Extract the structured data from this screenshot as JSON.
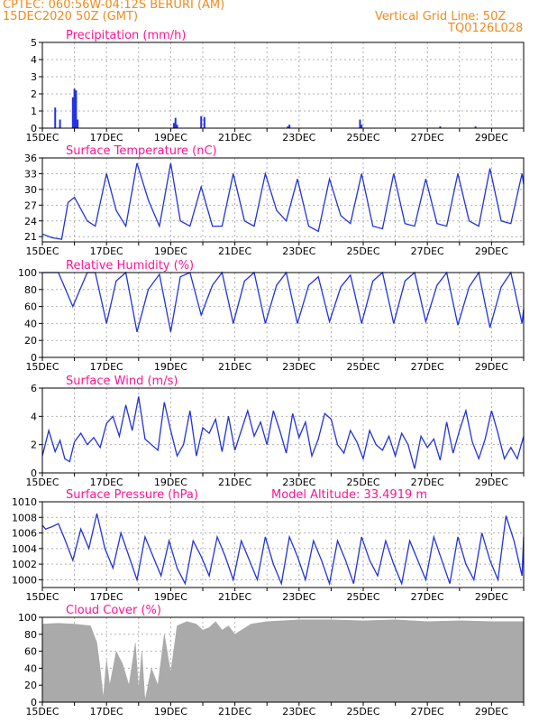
{
  "header": {
    "line1": "CPTEC:   060:56W-04:12S   BERURI (AM)",
    "line2": "15DEC2020 50Z (GMT)",
    "grid_note": "Vertical Grid Line: 50Z",
    "code": "TQ0126L028",
    "color": "#f08a1c"
  },
  "colors": {
    "title": "#ff1493",
    "line": "#2233dd",
    "cloud": "#aaaaaa",
    "grid": "#b0b0b0"
  },
  "chart_data": [
    {
      "type": "bar",
      "title": "Precipitation (mm/h)",
      "xlabel": "",
      "ylabel": "",
      "x_ticks": [
        "15DEC",
        "17DEC",
        "19DEC",
        "21DEC",
        "23DEC",
        "25DEC",
        "27DEC",
        "29DEC"
      ],
      "ylim": [
        0,
        5
      ],
      "yticks": [
        0,
        1,
        2,
        3,
        4,
        5
      ],
      "grid": true,
      "x_unit": "days since 15DEC 00Z",
      "series": [
        {
          "x": [
            0.4,
            0.55,
            0.95,
            1.0,
            1.05,
            1.1,
            4.1,
            4.15,
            4.2,
            4.95,
            5.05,
            7.65,
            7.7,
            9.9,
            9.95,
            12.4,
            13.5
          ],
          "values": [
            1.2,
            0.5,
            1.8,
            2.3,
            2.2,
            0.5,
            0.3,
            0.6,
            0.2,
            0.7,
            0.65,
            0.1,
            0.2,
            0.5,
            0.2,
            0.1,
            0.1
          ]
        }
      ]
    },
    {
      "type": "line",
      "title": "Surface Temperature (nC)",
      "xlabel": "",
      "ylabel": "",
      "x_ticks": [
        "15DEC",
        "17DEC",
        "19DEC",
        "21DEC",
        "23DEC",
        "25DEC",
        "27DEC",
        "29DEC"
      ],
      "ylim": [
        20,
        36
      ],
      "yticks": [
        21,
        24,
        27,
        30,
        33,
        36
      ],
      "grid": true,
      "x_unit": "days since 15DEC 00Z",
      "series": [
        {
          "x": [
            0,
            0.3,
            0.6,
            0.8,
            1.0,
            1.4,
            1.65,
            2.0,
            2.3,
            2.6,
            2.95,
            3.3,
            3.65,
            4.0,
            4.3,
            4.6,
            4.95,
            5.3,
            5.6,
            5.95,
            6.3,
            6.6,
            6.95,
            7.3,
            7.6,
            7.95,
            8.3,
            8.6,
            8.95,
            9.3,
            9.6,
            9.95,
            10.3,
            10.6,
            10.95,
            11.3,
            11.6,
            11.95,
            12.3,
            12.6,
            12.95,
            13.3,
            13.6,
            13.95,
            14.3,
            14.6,
            14.95,
            15.0
          ],
          "values": [
            21.5,
            20.8,
            20.5,
            27.5,
            28.5,
            24,
            23,
            33,
            26,
            23,
            35,
            28,
            23,
            35,
            24,
            23,
            30.5,
            23,
            23,
            33,
            24,
            23,
            33,
            26,
            24,
            32,
            23,
            22,
            32,
            25,
            23.5,
            33,
            23,
            22.5,
            33,
            23.5,
            23,
            32,
            23.5,
            23,
            33,
            24,
            23,
            34,
            24,
            23.5,
            33,
            31
          ]
        }
      ]
    },
    {
      "type": "line",
      "title": "Relative Humidity (%)",
      "xlabel": "",
      "ylabel": "",
      "x_ticks": [
        "15DEC",
        "17DEC",
        "19DEC",
        "21DEC",
        "23DEC",
        "25DEC",
        "27DEC",
        "29DEC"
      ],
      "ylim": [
        0,
        100
      ],
      "yticks": [
        0,
        20,
        40,
        60,
        80,
        100
      ],
      "grid": true,
      "x_unit": "days since 15DEC 00Z",
      "series": [
        {
          "x": [
            0,
            0.5,
            0.95,
            1.4,
            1.65,
            2.0,
            2.3,
            2.6,
            2.95,
            3.3,
            3.65,
            4.0,
            4.3,
            4.6,
            4.95,
            5.3,
            5.6,
            5.95,
            6.3,
            6.6,
            6.95,
            7.3,
            7.6,
            7.95,
            8.3,
            8.6,
            8.95,
            9.3,
            9.6,
            9.95,
            10.3,
            10.6,
            10.95,
            11.3,
            11.6,
            11.95,
            12.3,
            12.6,
            12.95,
            13.3,
            13.6,
            13.95,
            14.3,
            14.6,
            14.95,
            15.0
          ],
          "values": [
            100,
            100,
            60,
            100,
            100,
            40,
            90,
            100,
            30,
            80,
            98,
            30,
            95,
            100,
            50,
            85,
            100,
            40,
            90,
            100,
            40,
            85,
            100,
            40,
            85,
            95,
            42,
            83,
            97,
            40,
            90,
            100,
            40,
            90,
            100,
            42,
            85,
            100,
            38,
            83,
            100,
            35,
            83,
            100,
            40,
            57
          ]
        }
      ]
    },
    {
      "type": "line",
      "title": "Surface Wind (m/s)",
      "xlabel": "",
      "ylabel": "",
      "x_ticks": [
        "15DEC",
        "17DEC",
        "19DEC",
        "21DEC",
        "23DEC",
        "25DEC",
        "27DEC",
        "29DEC"
      ],
      "ylim": [
        0,
        6
      ],
      "yticks": [
        0,
        2,
        4,
        6
      ],
      "grid": true,
      "x_unit": "days since 15DEC 00Z",
      "series": [
        {
          "x": [
            0,
            0.2,
            0.4,
            0.55,
            0.7,
            0.85,
            1.0,
            1.2,
            1.4,
            1.6,
            1.8,
            2.0,
            2.2,
            2.4,
            2.6,
            2.8,
            3.0,
            3.2,
            3.4,
            3.6,
            3.8,
            4.0,
            4.2,
            4.4,
            4.6,
            4.8,
            5.0,
            5.2,
            5.4,
            5.6,
            5.8,
            6.0,
            6.2,
            6.4,
            6.6,
            6.8,
            7.0,
            7.2,
            7.4,
            7.6,
            7.8,
            8.0,
            8.2,
            8.4,
            8.6,
            8.8,
            9.0,
            9.2,
            9.4,
            9.6,
            9.8,
            10.0,
            10.2,
            10.4,
            10.6,
            10.8,
            11.0,
            11.2,
            11.4,
            11.6,
            11.8,
            12.0,
            12.2,
            12.4,
            12.6,
            12.8,
            13.0,
            13.2,
            13.4,
            13.6,
            13.8,
            14.0,
            14.2,
            14.4,
            14.6,
            14.8,
            15.0
          ],
          "values": [
            1.2,
            3.0,
            1.5,
            2.3,
            1.0,
            0.8,
            2.2,
            2.8,
            2.0,
            2.5,
            1.8,
            3.5,
            4.0,
            2.6,
            4.8,
            3.0,
            5.4,
            2.4,
            2.0,
            1.6,
            5.0,
            3.0,
            1.2,
            2.0,
            4.4,
            1.2,
            3.2,
            2.8,
            3.8,
            1.5,
            4.0,
            1.6,
            3.0,
            4.4,
            2.6,
            3.6,
            2.0,
            4.4,
            3.0,
            1.4,
            4.2,
            2.5,
            3.6,
            1.2,
            2.4,
            4.2,
            3.8,
            2.0,
            1.4,
            3.0,
            2.2,
            1.0,
            3.0,
            2.0,
            1.6,
            2.6,
            1.2,
            2.8,
            2.0,
            0.3,
            2.6,
            1.8,
            2.4,
            0.9,
            3.6,
            1.4,
            3.0,
            4.4,
            2.2,
            1.0,
            2.4,
            4.4,
            2.8,
            1.0,
            1.8,
            1.0,
            2.6
          ]
        }
      ]
    },
    {
      "type": "line",
      "title": "Surface Pressure (hPa)",
      "annotation": "Model Altitude: 33.4919 m",
      "xlabel": "",
      "ylabel": "",
      "x_ticks": [
        "15DEC",
        "17DEC",
        "19DEC",
        "21DEC",
        "23DEC",
        "25DEC",
        "27DEC",
        "29DEC"
      ],
      "ylim": [
        999,
        1010
      ],
      "yticks": [
        1000,
        1002,
        1004,
        1006,
        1008,
        1010
      ],
      "grid": true,
      "x_unit": "days since 15DEC 00Z",
      "series": [
        {
          "x": [
            0,
            0.1,
            0.3,
            0.5,
            0.7,
            0.95,
            1.2,
            1.45,
            1.7,
            1.95,
            2.2,
            2.45,
            2.7,
            2.95,
            3.2,
            3.45,
            3.7,
            3.95,
            4.2,
            4.45,
            4.7,
            4.95,
            5.2,
            5.45,
            5.7,
            5.95,
            6.2,
            6.45,
            6.7,
            6.95,
            7.2,
            7.45,
            7.7,
            7.95,
            8.2,
            8.45,
            8.7,
            8.95,
            9.2,
            9.45,
            9.7,
            9.95,
            10.2,
            10.45,
            10.7,
            10.95,
            11.2,
            11.45,
            11.7,
            11.95,
            12.2,
            12.45,
            12.7,
            12.95,
            13.2,
            13.45,
            13.7,
            13.95,
            14.2,
            14.45,
            14.7,
            14.95,
            15.0
          ],
          "values": [
            1007,
            1006.5,
            1006.8,
            1007.2,
            1005.2,
            1002.5,
            1006.5,
            1004,
            1008.5,
            1004,
            1001.5,
            1006,
            1003,
            1000,
            1005.5,
            1003,
            1000.5,
            1005,
            1001.5,
            999.5,
            1005,
            1003,
            1000.5,
            1005.5,
            1003,
            1000,
            1005,
            1002.5,
            1000,
            1005.5,
            1002,
            999.5,
            1005.5,
            1003,
            1000,
            1005,
            1002.5,
            999.5,
            1005,
            1002.5,
            999.5,
            1005.5,
            1002.5,
            1000.5,
            1005,
            1002,
            999.5,
            1005,
            1002.5,
            1000,
            1005.5,
            1002.5,
            999.5,
            1005.5,
            1002,
            1000,
            1006,
            1002.5,
            1000,
            1008.2,
            1005,
            1000.5,
            1005.5
          ]
        }
      ]
    },
    {
      "type": "area",
      "title": "Cloud Cover (%)",
      "xlabel": "",
      "ylabel": "",
      "x_ticks": [
        "15DEC",
        "17DEC",
        "19DEC",
        "21DEC",
        "23DEC",
        "25DEC",
        "27DEC",
        "29DEC"
      ],
      "ylim": [
        0,
        100
      ],
      "yticks": [
        0,
        20,
        40,
        60,
        80,
        100
      ],
      "grid": true,
      "x_unit": "days since 15DEC 00Z",
      "series": [
        {
          "x": [
            0,
            0.5,
            1.0,
            1.5,
            1.7,
            1.8,
            1.9,
            2.0,
            2.1,
            2.3,
            2.5,
            2.7,
            2.9,
            3.0,
            3.1,
            3.2,
            3.4,
            3.6,
            3.8,
            4.0,
            4.2,
            4.5,
            4.8,
            5.0,
            5.2,
            5.4,
            5.6,
            5.8,
            6.0,
            6.5,
            7.0,
            7.5,
            8.0,
            9.0,
            10.0,
            11.0,
            12.0,
            13.0,
            14.0,
            15.0
          ],
          "values": [
            92,
            93,
            92,
            90,
            70,
            40,
            5,
            50,
            20,
            60,
            45,
            20,
            70,
            15,
            60,
            2,
            40,
            20,
            80,
            35,
            90,
            95,
            92,
            85,
            88,
            95,
            85,
            90,
            80,
            92,
            95,
            96,
            97,
            97,
            96,
            97,
            95,
            96,
            95,
            95
          ]
        }
      ]
    }
  ]
}
